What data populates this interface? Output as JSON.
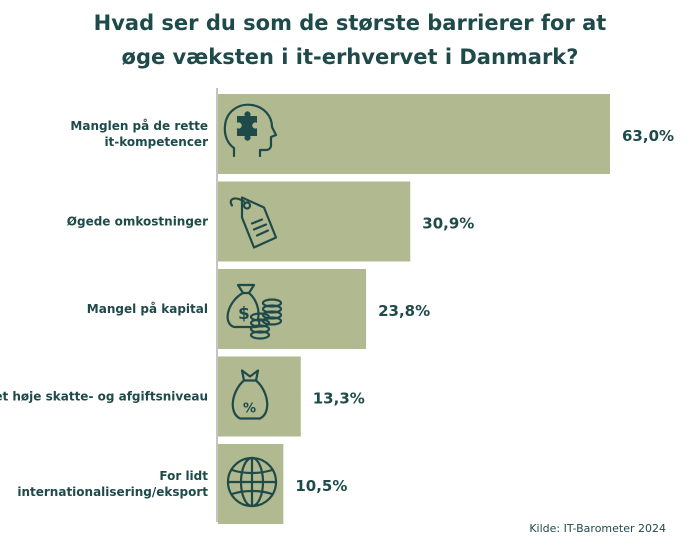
{
  "chart_data": {
    "type": "bar",
    "orientation": "horizontal",
    "title_lines": [
      "Hvad ser du som de største barrierer for at",
      "øge væksten i it-erhvervet i Danmark?"
    ],
    "categories": [
      [
        "Manglen på de rette",
        "it-kompetencer"
      ],
      [
        "Øgede omkostninger"
      ],
      [
        "Mangel på kapital"
      ],
      [
        "Det høje skatte- og afgiftsniveau"
      ],
      [
        "For lidt",
        "internationalisering/eksport"
      ]
    ],
    "values": [
      63.0,
      30.9,
      23.8,
      13.3,
      10.5
    ],
    "value_labels": [
      "63,0%",
      "30,9%",
      "23,8%",
      "13,3%",
      "10,5%"
    ],
    "icons": [
      "head-puzzle-icon",
      "price-tag-icon",
      "money-bag-coins-icon",
      "tax-bag-percent-icon",
      "globe-icon"
    ],
    "xlim": [
      0,
      63.0
    ],
    "grid": false,
    "legend": "none",
    "colors": {
      "bar": "#b0b98f",
      "text": "#1f4a4a",
      "axis": "#8a8a8a"
    }
  },
  "source": "Kilde: IT-Barometer 2024"
}
